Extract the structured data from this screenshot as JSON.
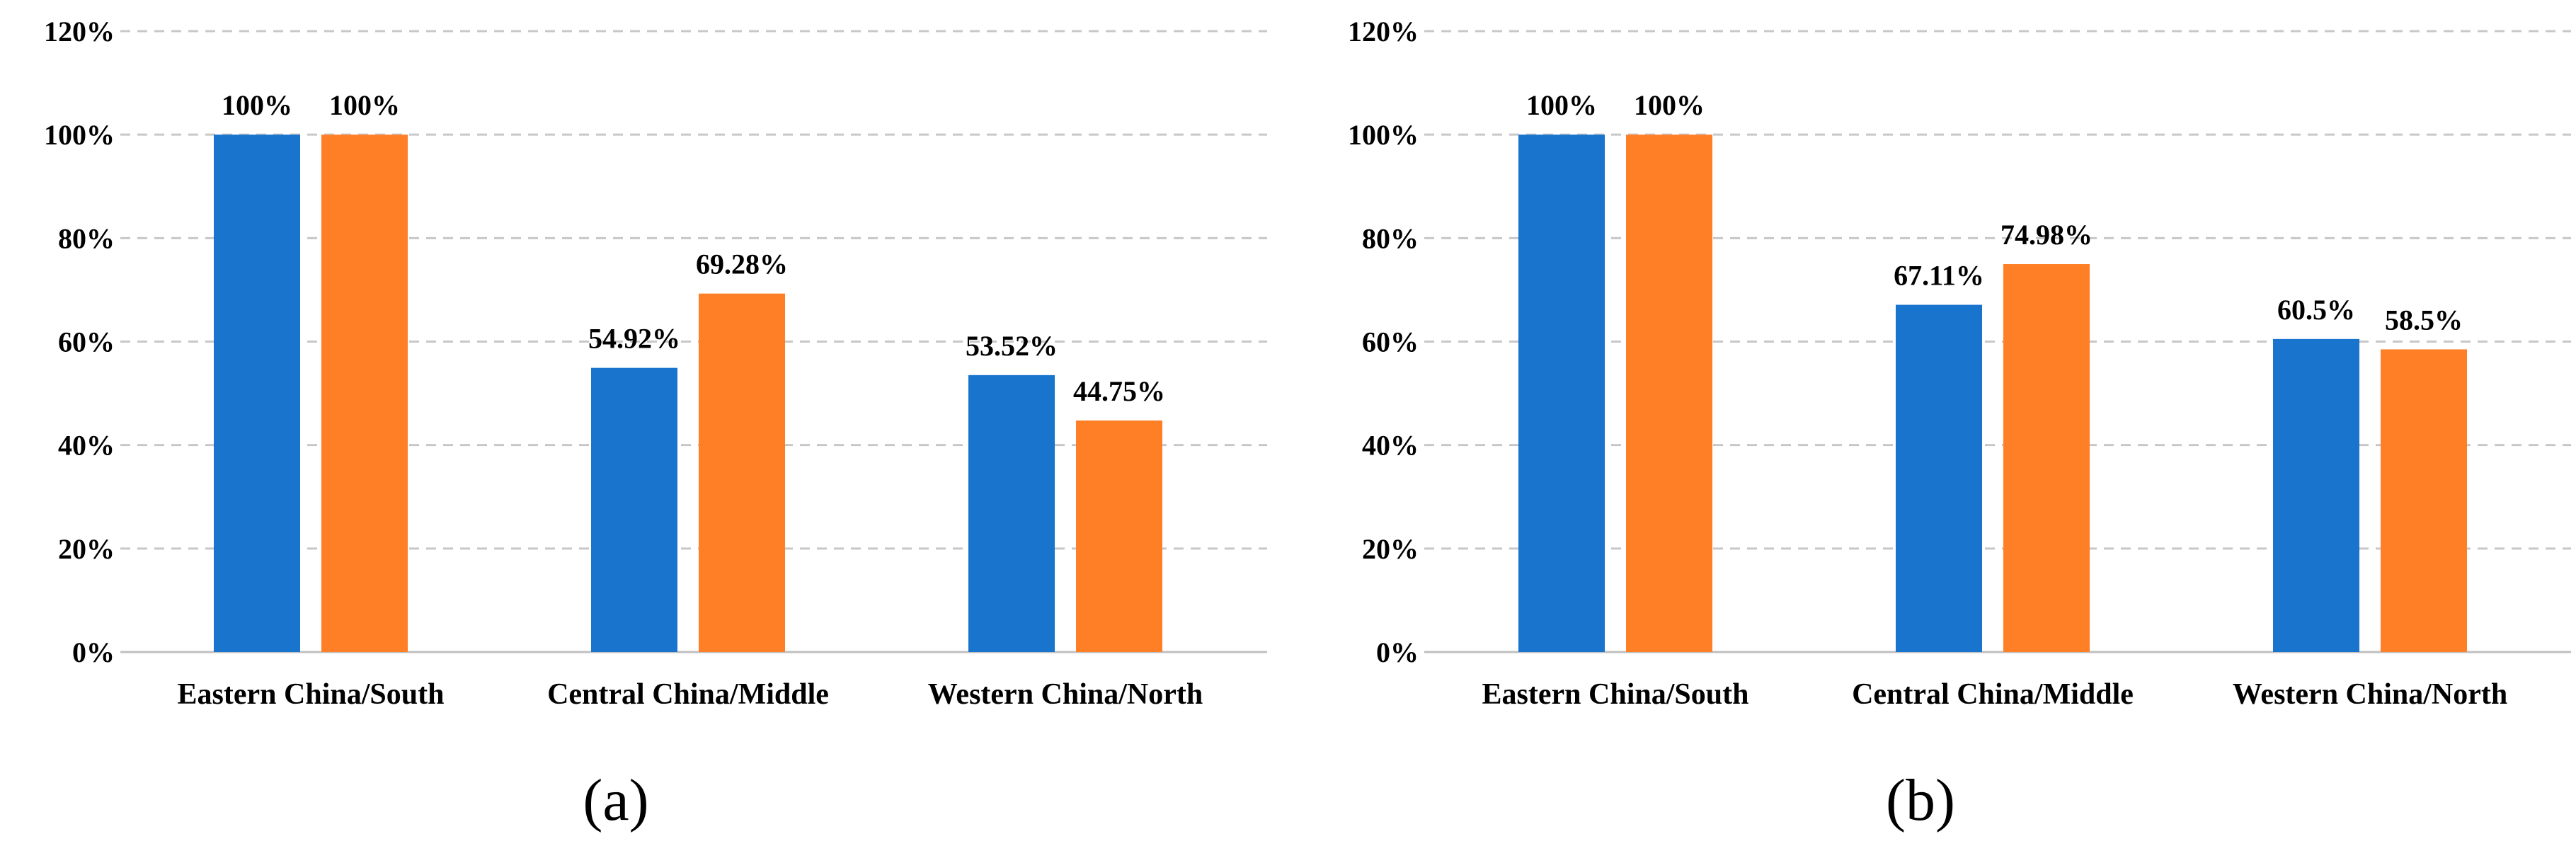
{
  "chart_data": [
    {
      "type": "bar",
      "panel_label": "(a)",
      "categories": [
        "Eastern China/South",
        "Central China/Middle",
        "Western China/North"
      ],
      "series": [
        {
          "values": [
            100,
            54.92,
            53.52
          ],
          "labels": [
            "100%",
            "54.92%",
            "53.52%"
          ],
          "color": "#1874CD"
        },
        {
          "values": [
            100,
            69.28,
            44.75
          ],
          "labels": [
            "100%",
            "69.28%",
            "44.75%"
          ],
          "color": "#FF7F27"
        }
      ],
      "ylim": [
        0,
        120
      ],
      "y_ticks": [
        "0%",
        "20%",
        "40%",
        "60%",
        "80%",
        "100%",
        "120%"
      ],
      "grid": true,
      "xlabel": "",
      "ylabel": ""
    },
    {
      "type": "bar",
      "panel_label": "(b)",
      "categories": [
        "Eastern China/South",
        "Central China/Middle",
        "Western China/North"
      ],
      "series": [
        {
          "values": [
            100,
            67.11,
            60.5
          ],
          "labels": [
            "100%",
            "67.11%",
            "60.5%"
          ],
          "color": "#1874CD"
        },
        {
          "values": [
            100,
            74.98,
            58.5
          ],
          "labels": [
            "100%",
            "74.98%",
            "58.5%"
          ],
          "color": "#FF7F27"
        }
      ],
      "ylim": [
        0,
        120
      ],
      "y_ticks": [
        "0%",
        "20%",
        "40%",
        "60%",
        "80%",
        "100%",
        "120%"
      ],
      "grid": true,
      "xlabel": "",
      "ylabel": ""
    }
  ],
  "colors": {
    "series_1": "#1874CD",
    "series_2": "#FF7F27",
    "gridline": "#C8C8C8",
    "axis": "#BFBFBF"
  }
}
